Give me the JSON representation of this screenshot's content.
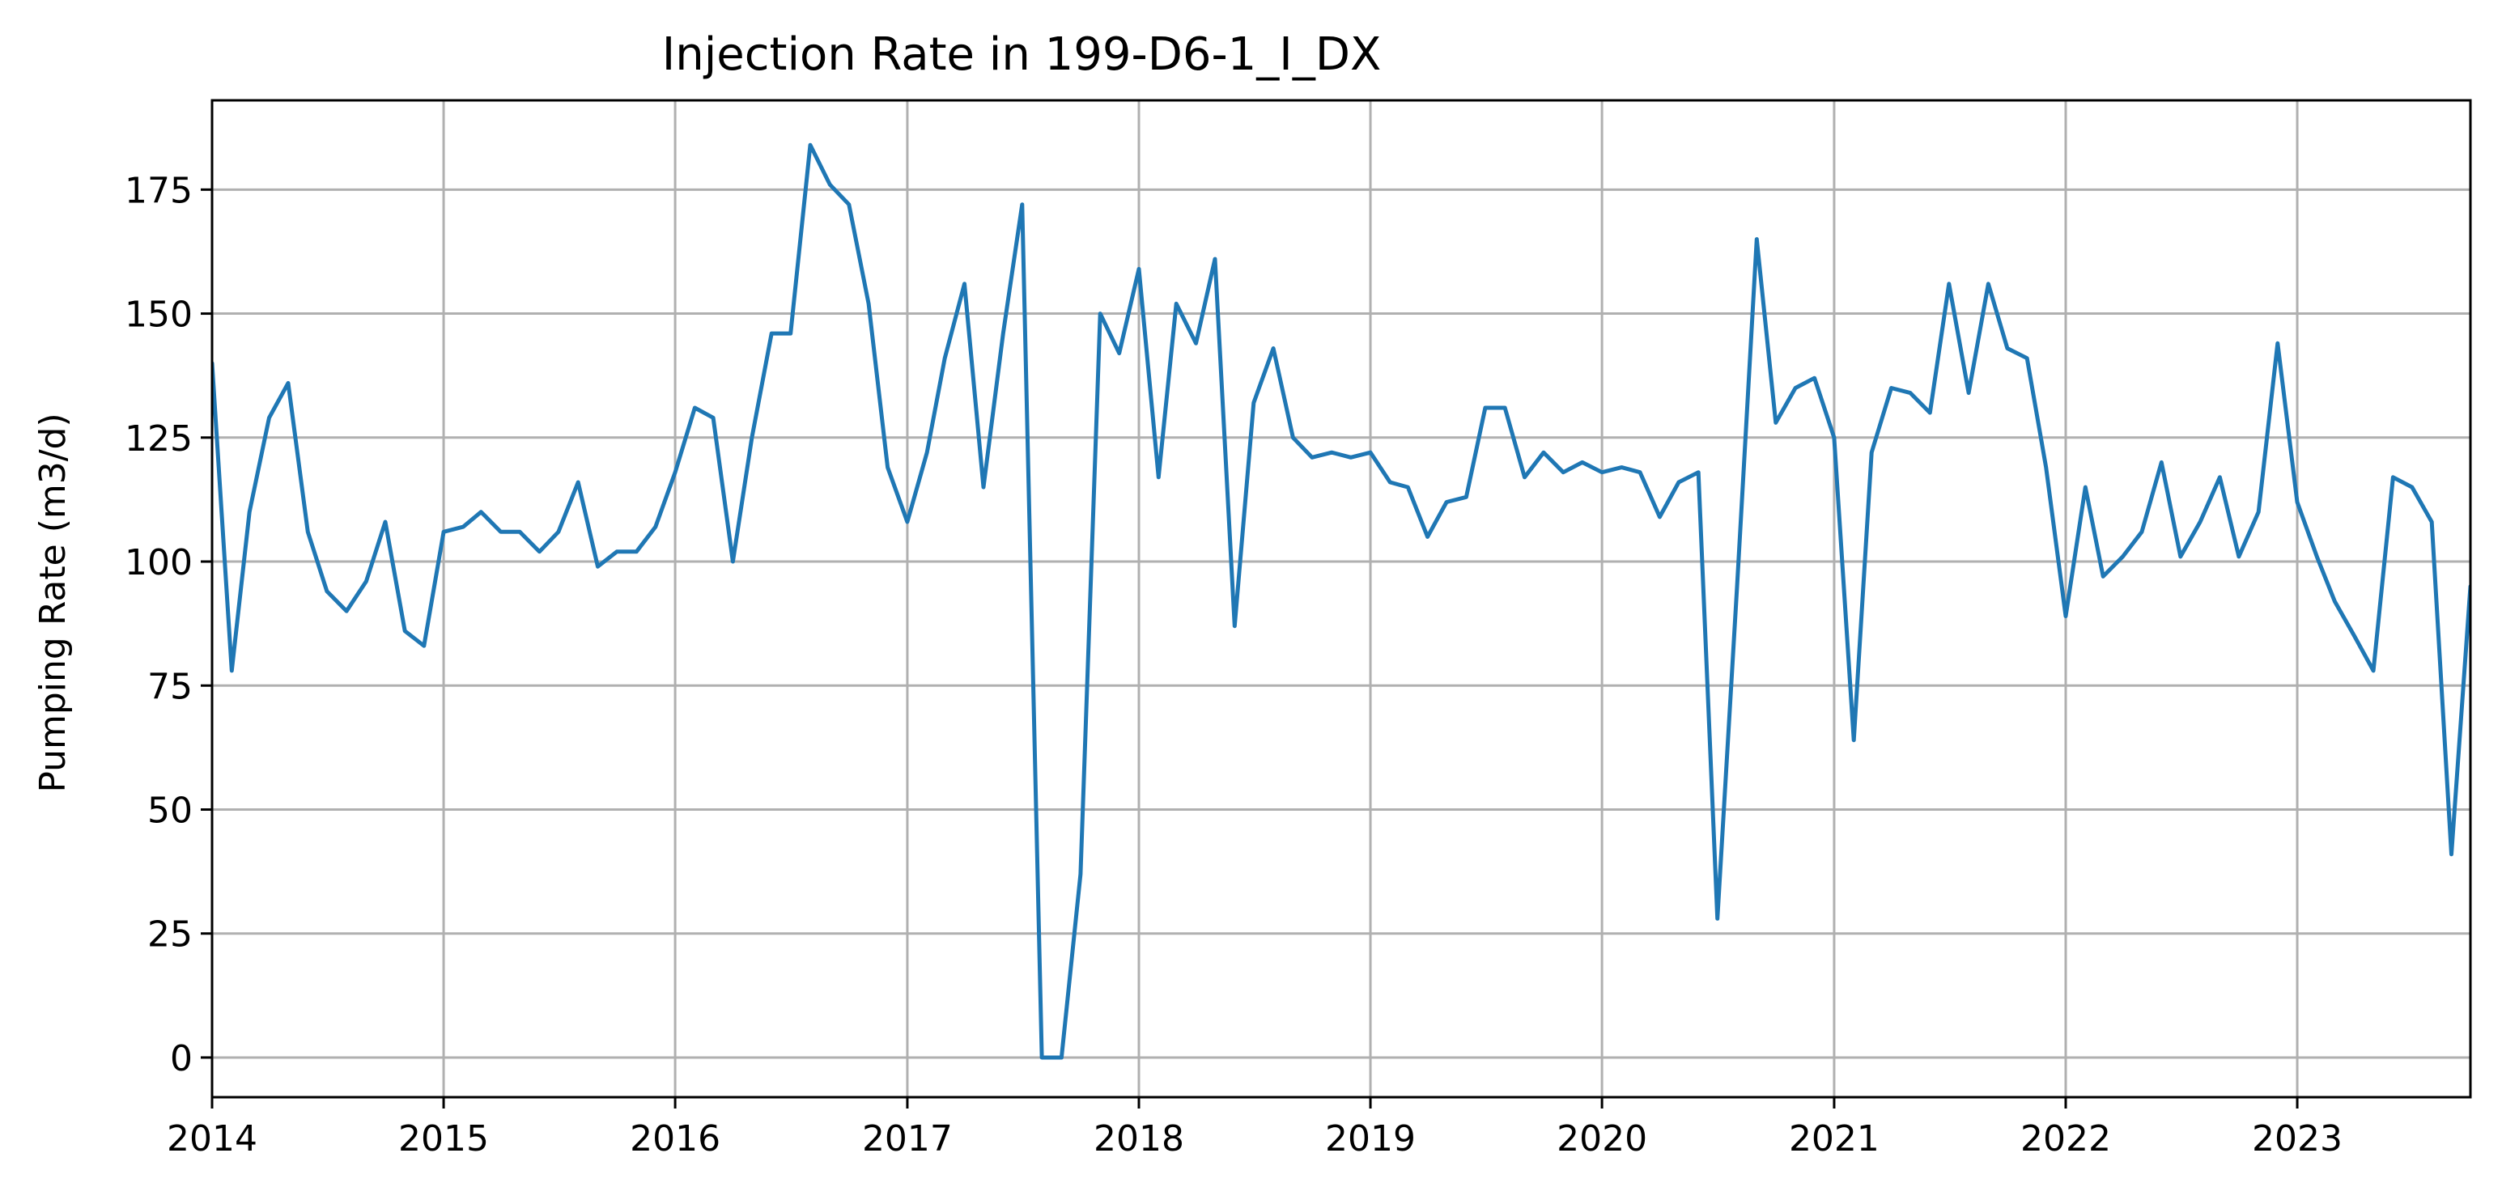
{
  "chart_data": {
    "type": "line",
    "title": "Injection Rate in 199-D6-1_I_DX",
    "xlabel": "",
    "ylabel": "Pumping Rate (m3/d)",
    "xlim": [
      "2014-01-01",
      "2023-10-01"
    ],
    "ylim": [
      -8,
      193
    ],
    "grid": true,
    "legend": "none",
    "x_ticks": [
      {
        "date": "2014-01-01",
        "label": "2014"
      },
      {
        "date": "2015-01-01",
        "label": "2015"
      },
      {
        "date": "2016-01-01",
        "label": "2016"
      },
      {
        "date": "2017-01-01",
        "label": "2017"
      },
      {
        "date": "2018-01-01",
        "label": "2018"
      },
      {
        "date": "2019-01-01",
        "label": "2019"
      },
      {
        "date": "2020-01-01",
        "label": "2020"
      },
      {
        "date": "2021-01-01",
        "label": "2021"
      },
      {
        "date": "2022-01-01",
        "label": "2022"
      },
      {
        "date": "2023-01-01",
        "label": "2023"
      }
    ],
    "y_ticks": [
      0,
      25,
      50,
      75,
      100,
      125,
      150,
      175
    ],
    "series": [
      {
        "color": "#1f77b4",
        "x": [
          "2014-01",
          "2014-02",
          "2014-03",
          "2014-04",
          "2014-05",
          "2014-06",
          "2014-07",
          "2014-08",
          "2014-09",
          "2014-10",
          "2014-11",
          "2014-12",
          "2015-01",
          "2015-02",
          "2015-03",
          "2015-04",
          "2015-05",
          "2015-06",
          "2015-07",
          "2015-08",
          "2015-09",
          "2015-10",
          "2015-11",
          "2015-12",
          "2016-01",
          "2016-02",
          "2016-03",
          "2016-04",
          "2016-05",
          "2016-06",
          "2016-07",
          "2016-08",
          "2016-09",
          "2016-10",
          "2016-11",
          "2016-12",
          "2017-01",
          "2017-02",
          "2017-03",
          "2017-04",
          "2017-05",
          "2017-06",
          "2017-07",
          "2017-08",
          "2017-09",
          "2017-10",
          "2017-11",
          "2017-12",
          "2018-01",
          "2018-02",
          "2018-03",
          "2018-04",
          "2018-05",
          "2018-06",
          "2018-07",
          "2018-08",
          "2018-09",
          "2018-10",
          "2018-11",
          "2018-12",
          "2019-01",
          "2019-02",
          "2019-03",
          "2019-04",
          "2019-05",
          "2019-06",
          "2019-07",
          "2019-08",
          "2019-09",
          "2019-10",
          "2019-11",
          "2019-12",
          "2020-01",
          "2020-02",
          "2020-03",
          "2020-04",
          "2020-05",
          "2020-06",
          "2020-07",
          "2020-08",
          "2020-09",
          "2020-10",
          "2020-11",
          "2020-12",
          "2021-01",
          "2021-02",
          "2021-03",
          "2021-04",
          "2021-05",
          "2021-06",
          "2021-07",
          "2021-08",
          "2021-09",
          "2021-10",
          "2021-11",
          "2021-12",
          "2022-01",
          "2022-02",
          "2022-03",
          "2022-04",
          "2022-05",
          "2022-06",
          "2022-07",
          "2022-08",
          "2022-09",
          "2022-10",
          "2022-11",
          "2022-12",
          "2023-01",
          "2023-02",
          "2023-03",
          "2023-04",
          "2023-05",
          "2023-06",
          "2023-07",
          "2023-08",
          "2023-09",
          "2023-10"
        ],
        "y": [
          140,
          78,
          110,
          129,
          136,
          106,
          94,
          90,
          96,
          108,
          86,
          83,
          106,
          107,
          110,
          106,
          106,
          102,
          106,
          116,
          99,
          102,
          102,
          107,
          118,
          131,
          129,
          100,
          125,
          146,
          146,
          184,
          176,
          172,
          152,
          119,
          108,
          122,
          141,
          156,
          115,
          146,
          172,
          0,
          0,
          37,
          150,
          142,
          159,
          117,
          152,
          144,
          161,
          87,
          132,
          143,
          125,
          121,
          122,
          121,
          122,
          116,
          115,
          105,
          112,
          113,
          131,
          131,
          117,
          122,
          118,
          120,
          118,
          119,
          118,
          109,
          116,
          118,
          28,
          95,
          165,
          128,
          135,
          137,
          125,
          64,
          122,
          135,
          134,
          130,
          156,
          134,
          156,
          143,
          141,
          119,
          89,
          115,
          97,
          101,
          106,
          120,
          101,
          108,
          117,
          101,
          110,
          144,
          112,
          101,
          92,
          85,
          78,
          117,
          115,
          108,
          41,
          95
        ]
      }
    ]
  }
}
